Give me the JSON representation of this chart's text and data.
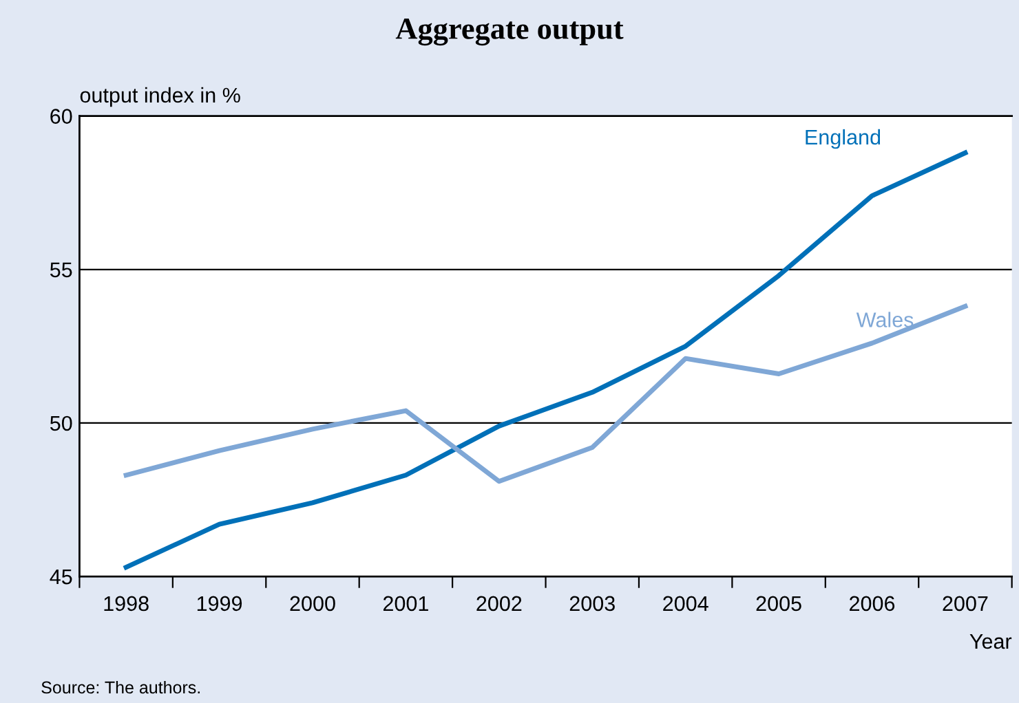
{
  "chart_data": {
    "type": "line",
    "title": "Aggregate output",
    "ylabel": "output index in %",
    "xlabel": "Year",
    "categories": [
      "1998",
      "1999",
      "2000",
      "2001",
      "2002",
      "2003",
      "2004",
      "2005",
      "2006",
      "2007"
    ],
    "series": [
      {
        "name": "England",
        "color": "#0070b8",
        "values": [
          45.3,
          46.7,
          47.4,
          48.3,
          49.9,
          51.0,
          52.5,
          54.8,
          57.4,
          58.8
        ]
      },
      {
        "name": "Wales",
        "color": "#7fa7d6",
        "values": [
          48.3,
          49.1,
          49.8,
          50.4,
          48.1,
          49.2,
          52.1,
          51.6,
          52.6,
          53.8
        ]
      }
    ],
    "ylim": [
      45,
      60
    ],
    "yticks": [
      45,
      50,
      55,
      60
    ],
    "grid": "y",
    "marker": "none",
    "line_style": "solid",
    "annotations": [
      "Source: The authors."
    ]
  }
}
